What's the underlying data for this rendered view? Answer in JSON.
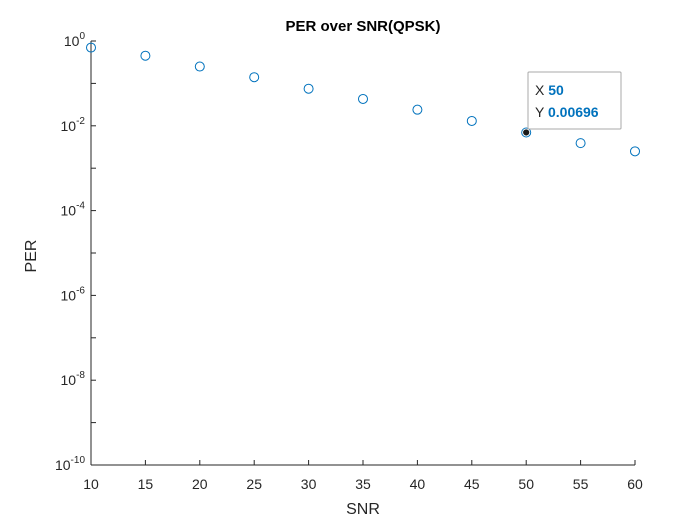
{
  "chart_data": {
    "type": "scatter",
    "title": "PER over SNR(QPSK)",
    "xlabel": "SNR",
    "ylabel": "PER",
    "xlim": [
      10,
      60
    ],
    "ylim": [
      1e-10,
      1
    ],
    "yscale": "log",
    "grid": false,
    "legend": "none",
    "xticks": [
      "10",
      "15",
      "20",
      "25",
      "30",
      "35",
      "40",
      "45",
      "50",
      "55",
      "60"
    ],
    "yticks": [
      {
        "base": "10",
        "exp": "0"
      },
      {
        "base": "10",
        "exp": "-2"
      },
      {
        "base": "10",
        "exp": "-4"
      },
      {
        "base": "10",
        "exp": "-6"
      },
      {
        "base": "10",
        "exp": "-8"
      },
      {
        "base": "10",
        "exp": "-10"
      }
    ],
    "marker_color": "#0072BD",
    "points": [
      {
        "x": 10,
        "y": 0.7
      },
      {
        "x": 15,
        "y": 0.45
      },
      {
        "x": 20,
        "y": 0.25
      },
      {
        "x": 25,
        "y": 0.14
      },
      {
        "x": 30,
        "y": 0.075
      },
      {
        "x": 35,
        "y": 0.043
      },
      {
        "x": 40,
        "y": 0.024
      },
      {
        "x": 45,
        "y": 0.013
      },
      {
        "x": 50,
        "y": 0.00696
      },
      {
        "x": 55,
        "y": 0.0039
      },
      {
        "x": 60,
        "y": 0.0025
      }
    ],
    "datatip": {
      "x_label": "X",
      "x_value": "50",
      "y_label": "Y",
      "y_value": "0.00696",
      "value_color": "#0072BD"
    }
  }
}
